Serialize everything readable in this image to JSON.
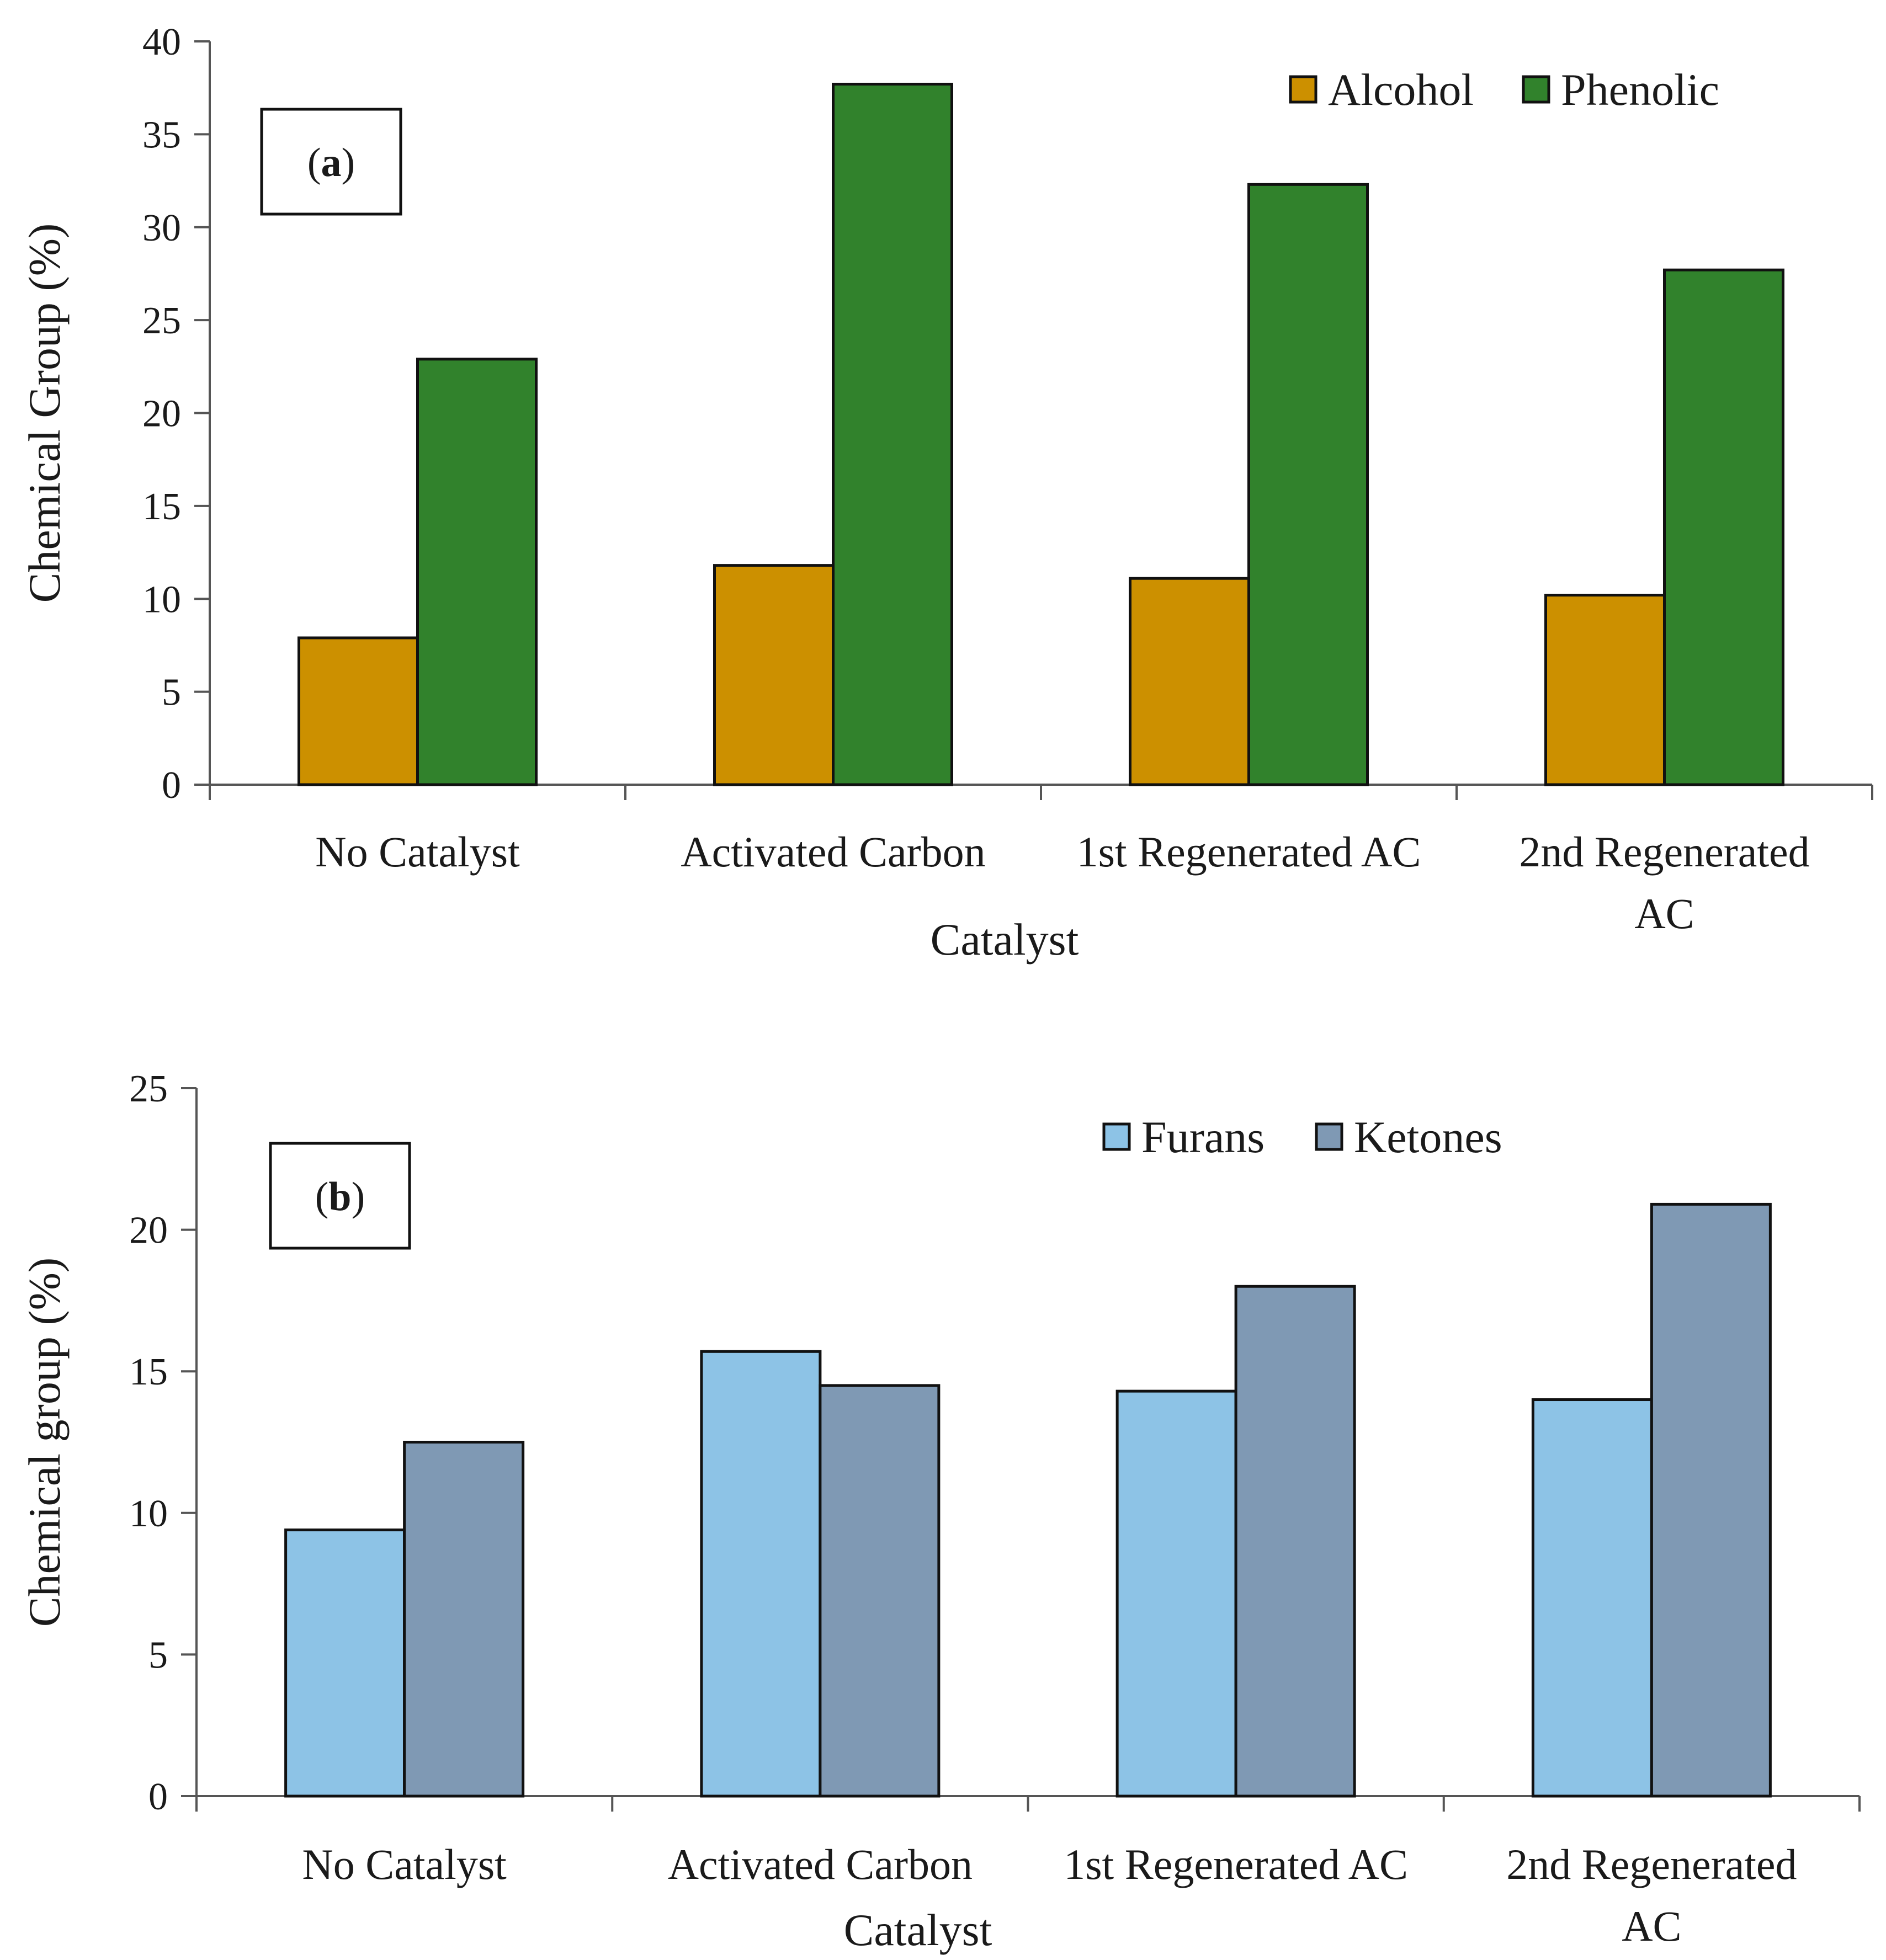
{
  "chart_data": [
    {
      "type": "bar",
      "panel_label": "a",
      "categories": [
        "No Catalyst",
        "Activated Carbon",
        "1st Regenerated AC",
        "2nd Regenerated AC"
      ],
      "category_lines": [
        [
          "No Catalyst"
        ],
        [
          "Activated Carbon"
        ],
        [
          "1st Regenerated AC"
        ],
        [
          "2nd Regenerated",
          "AC"
        ]
      ],
      "series": [
        {
          "name": "Alcohol",
          "color": "#cc9000",
          "values": [
            7.9,
            11.8,
            11.1,
            10.2
          ]
        },
        {
          "name": "Phenolic",
          "color": "#31822c",
          "values": [
            22.9,
            37.7,
            32.3,
            27.7
          ]
        }
      ],
      "xlabel": "Catalyst",
      "ylabel": "Chemical Group (%)",
      "ylim": [
        0,
        40
      ],
      "yticks": [
        0,
        5,
        10,
        15,
        20,
        25,
        30,
        35,
        40
      ],
      "grid": false,
      "legend": "top-right"
    },
    {
      "type": "bar",
      "panel_label": "b",
      "categories": [
        "No Catalyst",
        "Activated Carbon",
        "1st Regenerated AC",
        "2nd Regenerated AC"
      ],
      "category_lines": [
        [
          "No Catalyst"
        ],
        [
          "Activated Carbon"
        ],
        [
          "1st Regenerated AC"
        ],
        [
          "2nd Regenerated",
          "AC"
        ]
      ],
      "series": [
        {
          "name": "Furans",
          "color": "#8dc3e6",
          "values": [
            9.4,
            15.7,
            14.3,
            14.0
          ]
        },
        {
          "name": "Ketones",
          "color": "#7f99b4",
          "values": [
            12.5,
            14.5,
            18.0,
            20.9
          ]
        }
      ],
      "xlabel": "Catalyst",
      "ylabel": "Chemical group (%)",
      "ylim": [
        0,
        25
      ],
      "yticks": [
        0,
        5,
        10,
        15,
        20,
        25
      ],
      "grid": false,
      "legend": "top-right"
    }
  ]
}
